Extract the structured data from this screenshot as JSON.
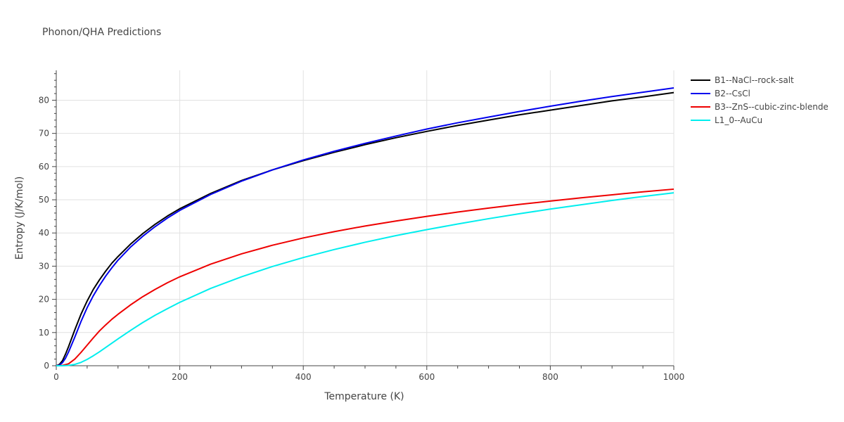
{
  "chart_data": {
    "type": "line",
    "title": "Phonon/QHA Predictions",
    "xlabel": "Temperature (K)",
    "ylabel": "Entropy (J/K/mol)",
    "xlim": [
      0,
      1000
    ],
    "ylim": [
      0,
      89
    ],
    "x_ticks": [
      0,
      200,
      400,
      600,
      800,
      1000
    ],
    "y_ticks": [
      0,
      10,
      20,
      30,
      40,
      50,
      60,
      70,
      80
    ],
    "grid": true,
    "legend_position": "right",
    "series": [
      {
        "name": "B1--NaCl--rock-salt",
        "color": "#000000",
        "x": [
          0,
          5,
          10,
          15,
          20,
          30,
          40,
          50,
          60,
          70,
          80,
          90,
          100,
          120,
          140,
          160,
          180,
          200,
          250,
          300,
          350,
          400,
          450,
          500,
          550,
          600,
          650,
          700,
          750,
          800,
          850,
          900,
          950,
          1000
        ],
        "y": [
          0,
          0.4,
          1.5,
          3.5,
          5.8,
          10.8,
          15.5,
          19.5,
          23.0,
          25.9,
          28.5,
          30.9,
          32.9,
          36.6,
          39.8,
          42.6,
          45.1,
          47.3,
          51.9,
          55.8,
          59.0,
          61.8,
          64.3,
          66.6,
          68.7,
          70.6,
          72.4,
          74.0,
          75.6,
          77.0,
          78.4,
          79.8,
          81.0,
          82.3
        ]
      },
      {
        "name": "B2--CsCl",
        "color": "#0000ee",
        "x": [
          0,
          5,
          10,
          15,
          20,
          30,
          40,
          50,
          60,
          70,
          80,
          90,
          100,
          120,
          140,
          160,
          180,
          200,
          250,
          300,
          350,
          400,
          450,
          500,
          550,
          600,
          650,
          700,
          750,
          800,
          850,
          900,
          950,
          1000
        ],
        "y": [
          0,
          0.2,
          0.9,
          2.3,
          4.2,
          8.6,
          13.3,
          17.5,
          21.1,
          24.2,
          27.0,
          29.5,
          31.8,
          35.7,
          39.0,
          41.9,
          44.5,
          46.8,
          51.6,
          55.6,
          59.0,
          62.0,
          64.6,
          67.0,
          69.2,
          71.3,
          73.2,
          74.9,
          76.6,
          78.2,
          79.7,
          81.1,
          82.4,
          83.7
        ]
      },
      {
        "name": "B3--ZnS--cubic-zinc-blende",
        "color": "#ee0000",
        "x": [
          0,
          10,
          20,
          30,
          40,
          50,
          60,
          70,
          80,
          90,
          100,
          120,
          140,
          160,
          180,
          200,
          250,
          300,
          350,
          400,
          450,
          500,
          550,
          600,
          650,
          700,
          750,
          800,
          850,
          900,
          950,
          1000
        ],
        "y": [
          0,
          0.1,
          0.6,
          2.0,
          4.0,
          6.2,
          8.4,
          10.5,
          12.3,
          14.0,
          15.5,
          18.3,
          20.8,
          23.0,
          25.0,
          26.8,
          30.6,
          33.7,
          36.3,
          38.5,
          40.4,
          42.1,
          43.6,
          45.0,
          46.3,
          47.5,
          48.6,
          49.6,
          50.6,
          51.5,
          52.4,
          53.2
        ]
      },
      {
        "name": "L1_0--AuCu",
        "color": "#00eeee",
        "x": [
          0,
          10,
          20,
          30,
          40,
          50,
          60,
          70,
          80,
          90,
          100,
          120,
          140,
          160,
          180,
          200,
          250,
          300,
          350,
          400,
          450,
          500,
          550,
          600,
          650,
          700,
          750,
          800,
          850,
          900,
          950,
          1000
        ],
        "y": [
          0,
          0,
          0.1,
          0.4,
          1.0,
          1.9,
          3.0,
          4.2,
          5.5,
          6.8,
          8.1,
          10.6,
          13.0,
          15.2,
          17.2,
          19.1,
          23.3,
          26.8,
          29.9,
          32.6,
          35.0,
          37.2,
          39.2,
          41.0,
          42.7,
          44.3,
          45.8,
          47.2,
          48.5,
          49.8,
          51.0,
          52.1
        ]
      }
    ]
  }
}
